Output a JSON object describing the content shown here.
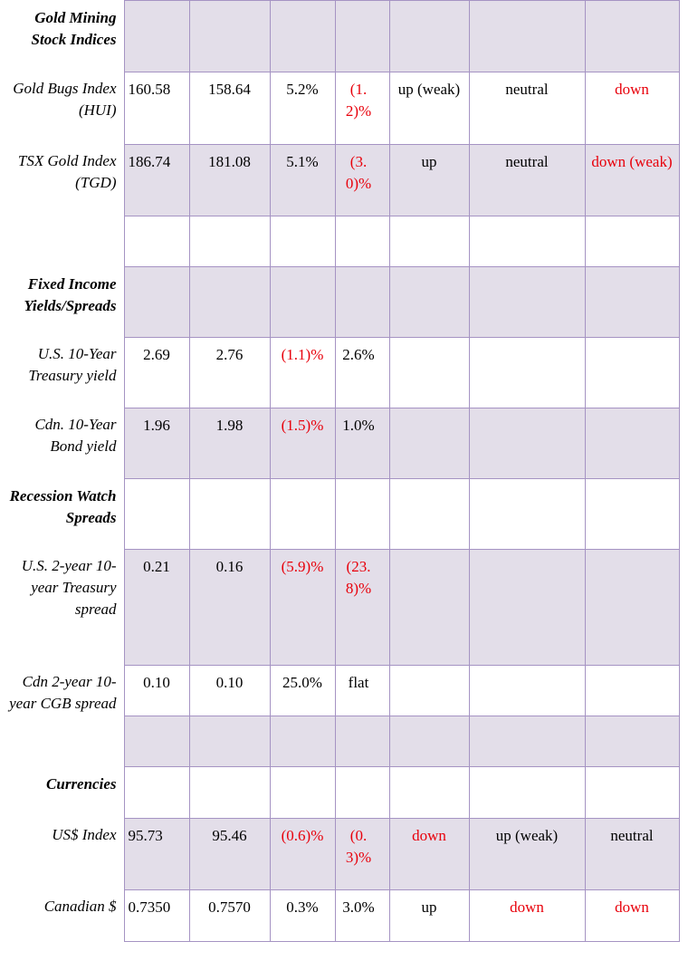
{
  "rows": [
    {
      "label": "Gold Mining Stock Indices",
      "header": true,
      "shaded": true,
      "cells": [
        "",
        "",
        "",
        "",
        "",
        "",
        ""
      ]
    },
    {
      "label": "Gold Bugs Index (HUI)",
      "shaded": false,
      "cells": [
        "160.58",
        "158.64",
        "5.2%",
        "(1.2)%",
        "up (weak)",
        "neutral",
        "down"
      ]
    },
    {
      "label": "TSX Gold Index (TGD)",
      "shaded": true,
      "cells": [
        "186.74",
        "181.08",
        "5.1%",
        "(3.0)%",
        "up",
        "neutral",
        "down (weak)"
      ]
    },
    {
      "label": "",
      "shaded": false,
      "cells": [
        "",
        "",
        "",
        "",
        "",
        "",
        ""
      ]
    },
    {
      "label": "Fixed Income Yields/Spreads",
      "header": true,
      "shaded": true,
      "cells": [
        "",
        "",
        "",
        "",
        "",
        "",
        ""
      ]
    },
    {
      "label": "U.S. 10-Year Treasury yield",
      "shaded": false,
      "cells": [
        "2.69",
        "2.76",
        "(1.1)%",
        "2.6%",
        "",
        "",
        ""
      ]
    },
    {
      "label": "Cdn. 10-Year Bond yield",
      "shaded": true,
      "cells": [
        "1.96",
        "1.98",
        "(1.5)%",
        "1.0%",
        "",
        "",
        ""
      ]
    },
    {
      "label": "Recession Watch Spreads",
      "header": true,
      "shaded": false,
      "cells": [
        "",
        "",
        "",
        "",
        "",
        "",
        ""
      ]
    },
    {
      "label": "U.S. 2-year 10-year Treasury spread",
      "shaded": true,
      "cells": [
        "0.21",
        "0.16",
        "(5.9)%",
        "(23.8)%",
        "",
        "",
        ""
      ]
    },
    {
      "label": "Cdn 2-year 10-year CGB spread",
      "shaded": false,
      "cells": [
        "0.10",
        "0.10",
        "25.0%",
        "flat",
        "",
        "",
        ""
      ]
    },
    {
      "label": "",
      "shaded": true,
      "cells": [
        "",
        "",
        "",
        "",
        "",
        "",
        ""
      ]
    },
    {
      "label": "Currencies",
      "header": true,
      "shaded": false,
      "cells": [
        "",
        "",
        "",
        "",
        "",
        "",
        ""
      ]
    },
    {
      "label": "US$ Index",
      "shaded": true,
      "cells": [
        "95.73",
        "95.46",
        "(0.6)%",
        "(0.3)%",
        "down",
        "up (weak)",
        "neutral"
      ]
    },
    {
      "label": "Canadian $",
      "shaded": false,
      "cells": [
        "0.7350",
        "0.7570",
        "0.3%",
        "3.0%",
        "up",
        "down",
        "down"
      ]
    }
  ],
  "colors": {
    "border": "#a593c3",
    "shade": "#e3dee9",
    "negative": "#e8000b",
    "text": "#000000"
  }
}
